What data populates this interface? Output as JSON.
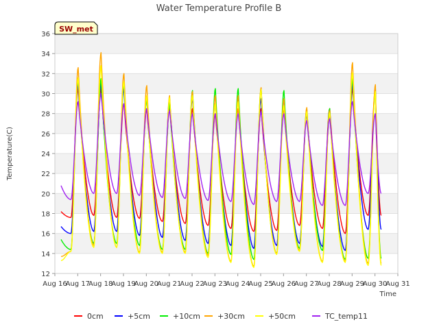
{
  "chart_data": {
    "type": "line",
    "title": "Water Temperature Profile B",
    "xlabel": "Time",
    "ylabel": "Temperature(C)",
    "badge": "SW_met",
    "xlim": [
      16,
      31
    ],
    "ylim": [
      12,
      36
    ],
    "yticks": [
      12,
      14,
      16,
      18,
      20,
      22,
      24,
      26,
      28,
      30,
      32,
      34,
      36
    ],
    "xticks": [
      {
        "value": 16,
        "label": "Aug 16"
      },
      {
        "value": 17,
        "label": "Aug 17"
      },
      {
        "value": 18,
        "label": "Aug 18"
      },
      {
        "value": 19,
        "label": "Aug 19"
      },
      {
        "value": 20,
        "label": "Aug 20"
      },
      {
        "value": 21,
        "label": "Aug 21"
      },
      {
        "value": 22,
        "label": "Aug 22"
      },
      {
        "value": 23,
        "label": "Aug 23"
      },
      {
        "value": 24,
        "label": "Aug 24"
      },
      {
        "value": 25,
        "label": "Aug 25"
      },
      {
        "value": 26,
        "label": "Aug 26"
      },
      {
        "value": 27,
        "label": "Aug 27"
      },
      {
        "value": 28,
        "label": "Aug 28"
      },
      {
        "value": 29,
        "label": "Aug 29"
      },
      {
        "value": 30,
        "label": "Aug 30"
      },
      {
        "value": 31,
        "label": "Aug 31"
      }
    ],
    "grid": true,
    "legend_position": "bottom",
    "days": [
      17,
      18,
      19,
      20,
      21,
      22,
      23,
      24,
      25,
      26,
      27,
      28,
      29,
      30
    ],
    "series": [
      {
        "name": "0cm",
        "color": "#ff0000",
        "start": 16.27,
        "end": 30.27,
        "start_value": 18.2,
        "peaks": [
          30.5,
          30.5,
          29.0,
          28.5,
          28.5,
          28.5,
          28.0,
          28.5,
          28.5,
          28.5,
          28.0,
          28.5,
          30.5,
          30.5
        ],
        "troughs": [
          17.6,
          17.8,
          17.6,
          17.5,
          17.2,
          17.0,
          16.8,
          16.5,
          16.2,
          16.3,
          16.8,
          16.5,
          16.0,
          17.8
        ]
      },
      {
        "name": "+5cm",
        "color": "#0000ff",
        "start": 16.27,
        "end": 30.27,
        "start_value": 16.7,
        "peaks": [
          31.0,
          31.0,
          30.5,
          29.5,
          29.5,
          29.5,
          29.0,
          29.5,
          29.5,
          29.5,
          28.0,
          28.0,
          31.0,
          30.0
        ],
        "troughs": [
          16.0,
          16.2,
          16.2,
          15.8,
          15.6,
          15.3,
          15.0,
          14.8,
          14.5,
          14.8,
          15.0,
          14.7,
          14.3,
          16.4
        ]
      },
      {
        "name": "+10cm",
        "color": "#00ee00",
        "start": 16.27,
        "end": 30.27,
        "start_value": 15.4,
        "peaks": [
          31.5,
          31.5,
          31.0,
          29.5,
          29.0,
          30.3,
          30.5,
          30.5,
          30.5,
          30.3,
          28.5,
          28.5,
          31.5,
          30.5
        ],
        "troughs": [
          14.4,
          15.0,
          15.0,
          14.8,
          14.4,
          14.4,
          14.0,
          13.9,
          13.4,
          14.0,
          14.5,
          14.3,
          13.4,
          13.5
        ]
      },
      {
        "name": "+30cm",
        "color": "#ffa500",
        "start": 16.27,
        "end": 30.27,
        "start_value": 13.7,
        "peaks": [
          32.6,
          34.1,
          32.0,
          30.8,
          29.8,
          30.2,
          29.8,
          29.8,
          30.6,
          29.5,
          28.6,
          28.3,
          33.1,
          30.9
        ],
        "troughs": [
          14.2,
          14.8,
          14.6,
          14.1,
          14.1,
          14.1,
          13.8,
          13.2,
          12.7,
          14.0,
          14.3,
          13.2,
          13.2,
          13.0
        ]
      },
      {
        "name": "+50cm",
        "color": "#ffff00",
        "start": 16.27,
        "end": 30.27,
        "start_value": 13.3,
        "peaks": [
          31.6,
          32.8,
          31.2,
          29.8,
          29.6,
          29.8,
          29.0,
          29.2,
          30.4,
          28.8,
          28.2,
          28.1,
          32.1,
          30.2
        ],
        "troughs": [
          14.2,
          14.6,
          14.6,
          14.0,
          14.0,
          14.0,
          13.6,
          13.1,
          12.6,
          13.9,
          14.2,
          13.1,
          13.1,
          12.8
        ]
      },
      {
        "name": "TC_temp11",
        "color": "#a020f0",
        "start": 16.27,
        "end": 30.27,
        "start_value": 20.8,
        "peaks": [
          29.2,
          30.0,
          29.0,
          28.5,
          28.3,
          28.0,
          28.0,
          28.0,
          28.2,
          28.0,
          27.3,
          27.5,
          29.2,
          28.0
        ],
        "troughs": [
          19.4,
          20.0,
          20.0,
          19.8,
          19.6,
          19.5,
          19.3,
          19.2,
          18.9,
          19.2,
          19.2,
          18.8,
          18.8,
          20.0
        ]
      }
    ]
  }
}
